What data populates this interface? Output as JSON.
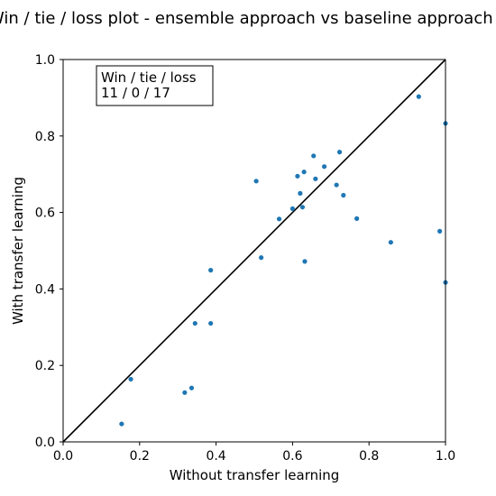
{
  "chart_data": {
    "type": "scatter",
    "title": "Win / tie / loss plot - ensemble approach vs baseline approach (e",
    "xlabel": "Without transfer learning",
    "ylabel": "With transfer learning",
    "xlim": [
      0.0,
      1.0
    ],
    "ylim": [
      0.0,
      1.0
    ],
    "xticks": [
      "0.0",
      "0.2",
      "0.4",
      "0.6",
      "0.8",
      "1.0"
    ],
    "yticks": [
      "0.0",
      "0.2",
      "0.4",
      "0.6",
      "0.8",
      "1.0"
    ],
    "grid": false,
    "diagonal_line": true,
    "point_color": "#1f77b4",
    "line_color": "#000000",
    "annotation": {
      "line1": "Win / tie / loss",
      "line2": "11 / 0 / 17",
      "placement": "top-left"
    },
    "series": [
      {
        "x": [
          0.153,
          0.177,
          0.318,
          0.336,
          0.345,
          0.386,
          0.386,
          0.505,
          0.518,
          0.565,
          0.6,
          0.613,
          0.62,
          0.626,
          0.63,
          0.632,
          0.655,
          0.66,
          0.683,
          0.715,
          0.723,
          0.733,
          0.768,
          0.857,
          0.93,
          0.985,
          1.0,
          1.0
        ],
        "y": [
          0.047,
          0.164,
          0.129,
          0.141,
          0.31,
          0.31,
          0.449,
          0.682,
          0.482,
          0.583,
          0.61,
          0.695,
          0.65,
          0.614,
          0.706,
          0.472,
          0.748,
          0.688,
          0.72,
          0.672,
          0.758,
          0.645,
          0.584,
          0.522,
          0.903,
          0.551,
          0.833,
          0.417
        ]
      }
    ]
  }
}
